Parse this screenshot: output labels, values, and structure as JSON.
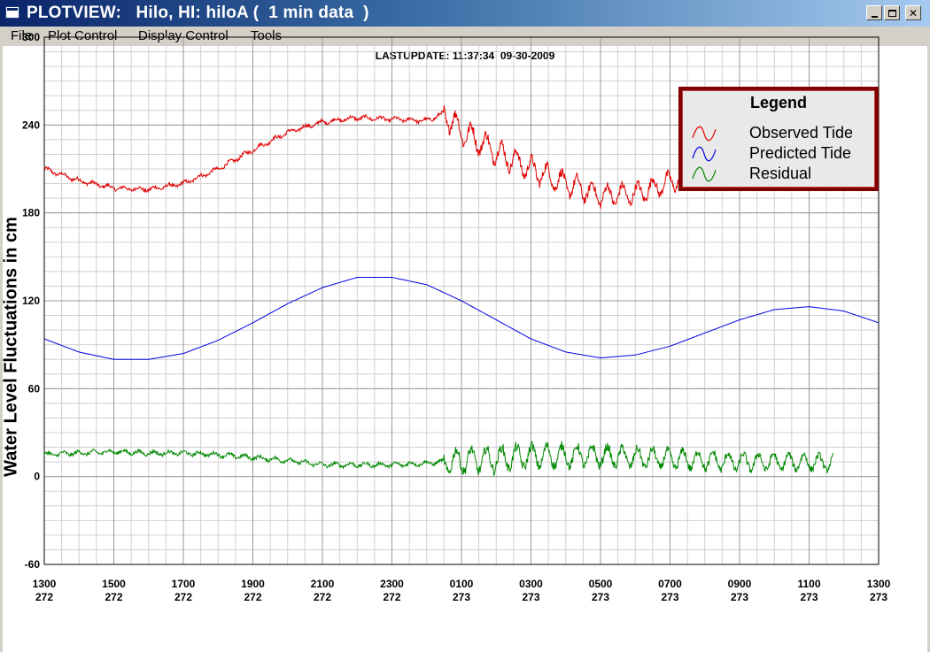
{
  "window": {
    "title": "PLOTVIEW:   Hilo, HI: hiloA (  1 min data  )",
    "icon": "app-window-icon",
    "controls": [
      "minimize-icon",
      "maximize-icon",
      "close-icon"
    ]
  },
  "menu": {
    "file": "File",
    "plot_control": "Plot Control",
    "display_control": "Display Control",
    "tools": "Tools"
  },
  "last_update": "LASTUPDATE: 11:37:34  09-30-2009",
  "colors": {
    "observed": "#e00000",
    "predicted": "#0000e0",
    "residual": "#008800",
    "legend_border": "#800000",
    "titlebar": "#0a246a"
  },
  "chart_data": {
    "type": "line",
    "ylabel": "Water Level Fluctuations in cm",
    "ylim": [
      -60,
      300
    ],
    "yticks": [
      "300",
      "240",
      "180",
      "120",
      "60",
      "0",
      "-60"
    ],
    "x_tick_times": [
      "1300",
      "1500",
      "1700",
      "1900",
      "2100",
      "2300",
      "0100",
      "0300",
      "0500",
      "0700",
      "0900",
      "1100",
      "1300"
    ],
    "x_tick_days": [
      "272",
      "272",
      "272",
      "272",
      "272",
      "272",
      "273",
      "273",
      "273",
      "273",
      "273",
      "273",
      "273"
    ],
    "xlim_hours": [
      0,
      24
    ],
    "grid": true,
    "legend": {
      "title": "Legend",
      "placement": "top-right",
      "entries": [
        "Observed Tide",
        "Predicted Tide",
        "Residual"
      ]
    },
    "series": [
      {
        "name": "Observed Tide",
        "x_hours": [
          0,
          1,
          2,
          3,
          4,
          5,
          6,
          7,
          8,
          9,
          10,
          11,
          11.5,
          12,
          13,
          14,
          15,
          16,
          17,
          18,
          19,
          20,
          21,
          22,
          22.7
        ],
        "values": [
          210,
          202,
          197,
          196,
          200,
          210,
          223,
          235,
          242,
          245,
          244,
          243,
          248,
          236,
          222,
          210,
          200,
          192,
          193,
          201,
          210,
          218,
          226,
          227,
          226
        ],
        "oscillation_after_hours": 11.5
      },
      {
        "name": "Predicted Tide",
        "x_hours": [
          0,
          1,
          2,
          3,
          4,
          5,
          6,
          7,
          8,
          9,
          10,
          11,
          12,
          13,
          14,
          15,
          16,
          17,
          18,
          19,
          20,
          21,
          22,
          23,
          24
        ],
        "values": [
          94,
          85,
          80,
          80,
          84,
          93,
          105,
          118,
          129,
          136,
          136,
          131,
          120,
          107,
          94,
          85,
          81,
          83,
          89,
          98,
          107,
          114,
          116,
          113,
          105
        ]
      },
      {
        "name": "Residual",
        "x_hours": [
          0,
          1,
          2,
          3,
          4,
          5,
          6,
          7,
          8,
          9,
          10,
          11,
          11.5,
          12,
          13,
          14,
          15,
          16,
          17,
          18,
          19,
          20,
          21,
          22,
          22.7
        ],
        "values": [
          15,
          16,
          17,
          16,
          16,
          15,
          13,
          11,
          8,
          8,
          8,
          9,
          10,
          11,
          12,
          14,
          14,
          14,
          13,
          12,
          11,
          10,
          10,
          10,
          9
        ],
        "oscillation_after_hours": 11.5
      }
    ]
  }
}
